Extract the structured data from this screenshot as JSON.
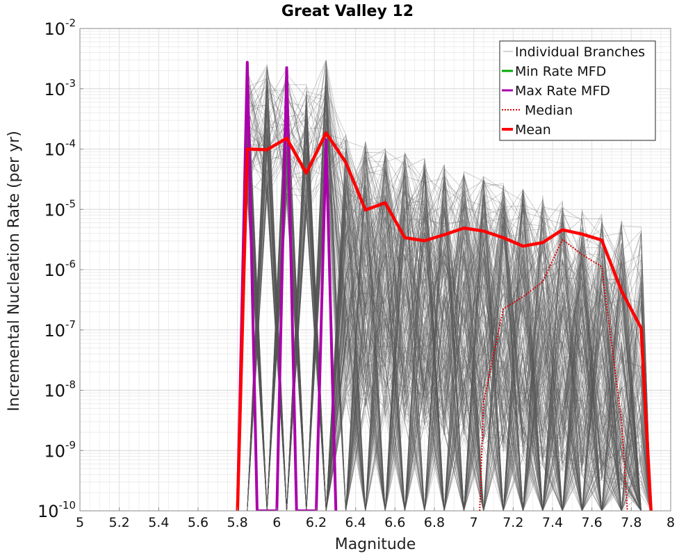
{
  "chart_data": {
    "type": "line",
    "title": "Great Valley 12",
    "xlabel": "Magnitude",
    "ylabel": "Incremental Nucleation Rate (per yr)",
    "xlim": [
      5,
      8
    ],
    "ylim_log10": [
      -10,
      -2
    ],
    "y_scale": "log",
    "grid": true,
    "legend_position": "top-right",
    "x_ticks": [
      "5",
      "5.2",
      "5.4",
      "5.6",
      "5.8",
      "6",
      "6.2",
      "6.4",
      "6.6",
      "6.8",
      "7",
      "7.2",
      "7.4",
      "7.6",
      "7.8",
      "8"
    ],
    "x_tick_values": [
      5,
      5.2,
      5.4,
      5.6,
      5.8,
      6,
      6.2,
      6.4,
      6.6,
      6.8,
      7,
      7.2,
      7.4,
      7.6,
      7.8,
      8
    ],
    "y_tick_exponents": [
      -10,
      -9,
      -8,
      -7,
      -6,
      -5,
      -4,
      -3,
      -2
    ],
    "y_tick_base": "10",
    "legend": [
      {
        "label": "Individual Branches",
        "color": "#aaaaaa",
        "style": "thin"
      },
      {
        "label": "Min Rate MFD",
        "color": "#00aa00",
        "style": "solid"
      },
      {
        "label": "Max Rate MFD",
        "color": "#aa00aa",
        "style": "solid"
      },
      {
        "label": "Median",
        "color": "#dd0000",
        "style": "dotted"
      },
      {
        "label": "Mean",
        "color": "#ff0000",
        "style": "thick"
      }
    ],
    "series": [
      {
        "name": "Mean",
        "color": "#ff0000",
        "x": [
          5.8,
          5.85,
          5.95,
          6.05,
          6.15,
          6.25,
          6.35,
          6.45,
          6.55,
          6.65,
          6.75,
          6.85,
          6.95,
          7.05,
          7.15,
          7.25,
          7.35,
          7.45,
          7.55,
          7.65,
          7.75,
          7.85,
          7.9
        ],
        "log10_y": [
          -10,
          -4.0,
          -4.01,
          -3.82,
          -4.4,
          -3.73,
          -4.22,
          -5.01,
          -4.89,
          -5.47,
          -5.52,
          -5.42,
          -5.31,
          -5.36,
          -5.47,
          -5.61,
          -5.55,
          -5.34,
          -5.41,
          -5.51,
          -6.35,
          -6.97,
          -10
        ]
      },
      {
        "name": "Max Rate MFD",
        "color": "#aa00aa",
        "x": [
          5.8,
          5.85,
          5.9,
          6.0,
          6.05,
          6.1,
          6.2,
          6.25,
          6.3
        ],
        "log10_y": [
          -10,
          -2.56,
          -10,
          -10,
          -2.65,
          -10,
          -10,
          -3.85,
          -10
        ]
      },
      {
        "name": "Median",
        "color": "#dd0000",
        "x": [
          7.03,
          7.05,
          7.15,
          7.25,
          7.35,
          7.45,
          7.55,
          7.65,
          7.75,
          7.78
        ],
        "log10_y": [
          -10,
          -8.2,
          -6.65,
          -6.45,
          -6.2,
          -5.5,
          -5.75,
          -5.95,
          -8.5,
          -10
        ]
      }
    ],
    "individual_branches_note": "Several thousand logic-tree branch curves rendered as thin gray lines"
  }
}
